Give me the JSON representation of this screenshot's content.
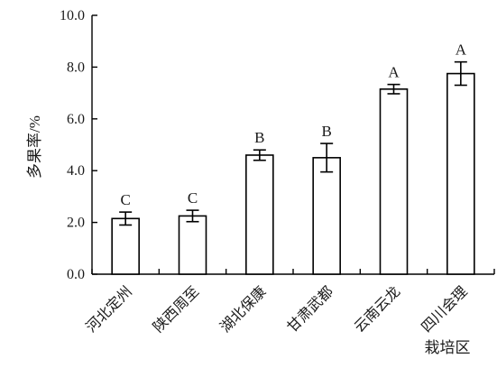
{
  "chart_data": {
    "type": "bar",
    "categories": [
      "河北定州",
      "陕西周至",
      "湖北保康",
      "甘肃武都",
      "云南云龙",
      "四川会理"
    ],
    "values": [
      2.15,
      2.25,
      4.6,
      4.5,
      7.15,
      7.75
    ],
    "errors": [
      0.25,
      0.22,
      0.2,
      0.55,
      0.18,
      0.45
    ],
    "letters": [
      "C",
      "C",
      "B",
      "B",
      "A",
      "A"
    ],
    "ylabel": "多果率/%",
    "xlabel": "栽培区",
    "ylim": [
      0,
      10
    ],
    "yticks": [
      "0.0",
      "2.0",
      "4.0",
      "6.0",
      "8.0",
      "10.0"
    ],
    "grid": false,
    "legend": "none"
  }
}
